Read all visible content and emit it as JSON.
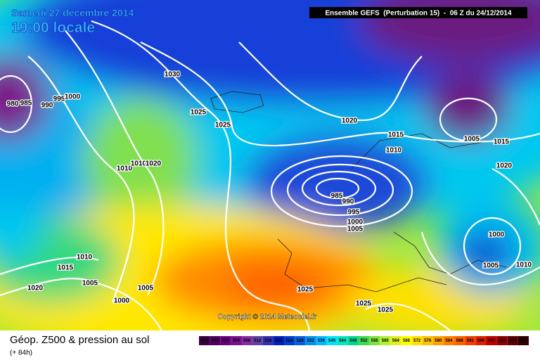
{
  "header": {
    "date": "Samedi 27 décembre 2014",
    "time": "19:00 locale",
    "model": "Ensemble GEFS  (Perturbation 15)  -  06 Z du 24/12/2014"
  },
  "map": {
    "copyright": "Copyright © 2014 Meteociel.fr",
    "isobar_labels": [
      980,
      985,
      990,
      995,
      1000,
      1030,
      1025,
      1025,
      1020,
      1015,
      1010,
      1005,
      1015,
      1020,
      985,
      990,
      995,
      1000,
      1005,
      1010,
      1010,
      1020,
      1010,
      1015,
      1005,
      1005,
      1020,
      1000,
      1025,
      1025,
      1025,
      1000,
      1005,
      1010
    ]
  },
  "legend": {
    "title": "Géop. Z500 & pression au sol",
    "lead_time": "(+ 84h)",
    "scale": [
      492,
      496,
      500,
      504,
      508,
      512,
      516,
      520,
      524,
      528,
      532,
      536,
      540,
      544,
      548,
      552,
      556,
      560,
      564,
      568,
      572,
      576,
      580,
      584,
      588,
      592,
      596,
      600,
      604,
      608,
      612
    ],
    "colors": [
      "#3a0040",
      "#500060",
      "#6a0080",
      "#7a1090",
      "#8a2aa0",
      "#6040a0",
      "#3030b0",
      "#0020c0",
      "#0040d0",
      "#0060e0",
      "#0090f0",
      "#00b8ff",
      "#00e0ff",
      "#00e8c0",
      "#00d890",
      "#40d850",
      "#80e040",
      "#b0f030",
      "#e0f020",
      "#ffff00",
      "#ffe000",
      "#ffc000",
      "#ffa000",
      "#ff8000",
      "#ff6000",
      "#f04000",
      "#e02000",
      "#c00000",
      "#900000",
      "#600000",
      "#300000"
    ]
  }
}
